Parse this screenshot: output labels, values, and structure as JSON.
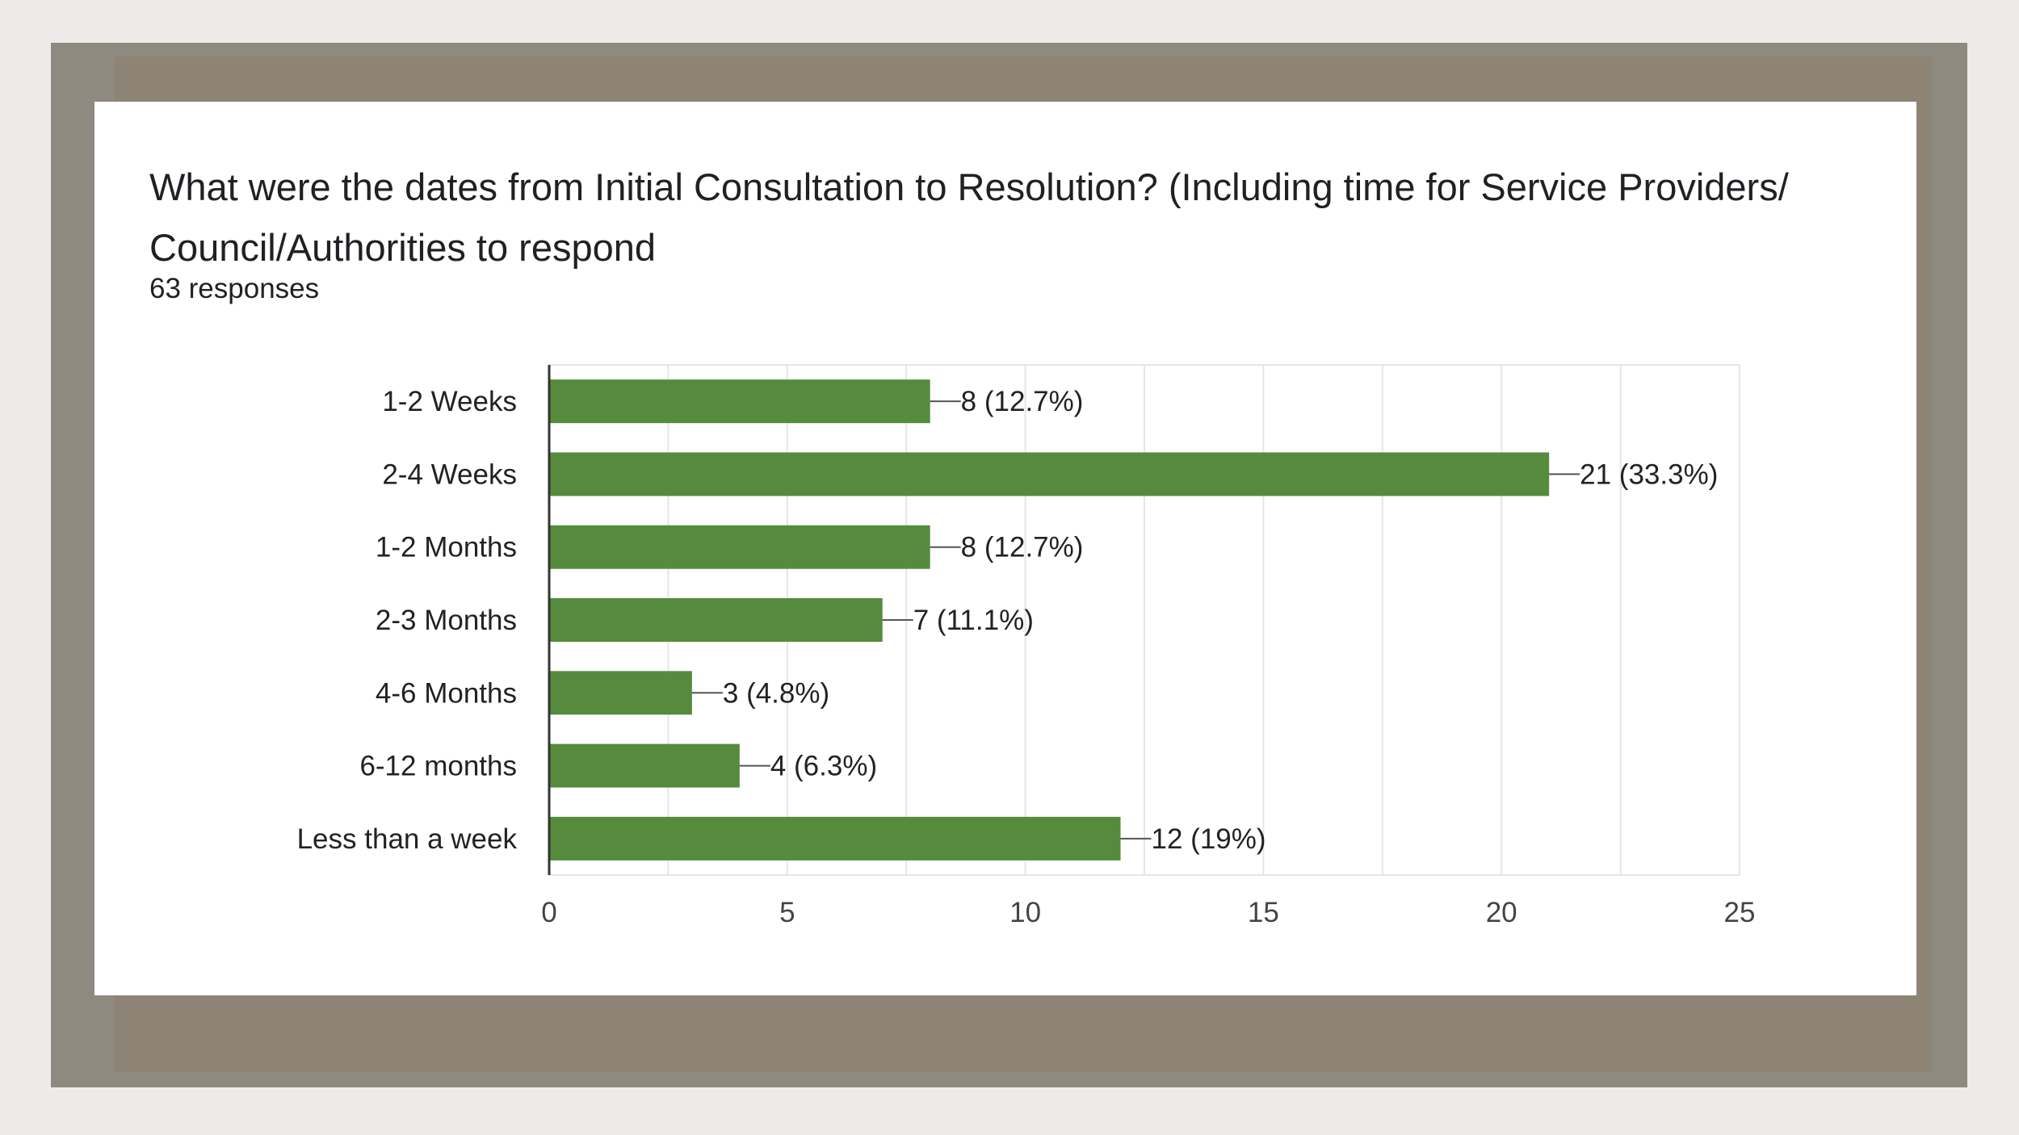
{
  "card": {
    "title": "What were the dates from Initial Consultation to Resolution? (Including time for Service Providers/ Council/Authorities to respond",
    "responses": "63 responses"
  },
  "colors": {
    "bar": "#568b3d",
    "grid": "#e6e6e6",
    "axis": "#333333"
  },
  "chart_data": {
    "type": "bar",
    "orientation": "horizontal",
    "categories": [
      "1-2 Weeks",
      "2-4 Weeks",
      "1-2 Months",
      "2-3 Months",
      "4-6 Months",
      "6-12 months",
      "Less than a week"
    ],
    "values": [
      8,
      21,
      8,
      7,
      3,
      4,
      12
    ],
    "data_labels": [
      "8 (12.7%)",
      "21 (33.3%)",
      "8 (12.7%)",
      "7 (11.1%)",
      "3 (4.8%)",
      "4 (6.3%)",
      "12 (19%)"
    ],
    "xticks": [
      "0",
      "5",
      "10",
      "15",
      "20",
      "25"
    ],
    "xlim": [
      0,
      25
    ],
    "grid": true
  }
}
